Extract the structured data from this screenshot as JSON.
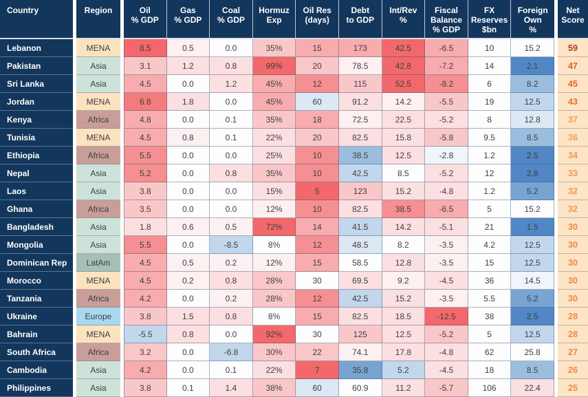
{
  "palette": {
    "R5": "#f3686a",
    "R45": "#f47b7d",
    "R4": "#f58f91",
    "R3": "#f8acae",
    "R2": "#fac7c9",
    "R1": "#fcdfe0",
    "R0": "#fdf0f1",
    "W": "#fdfdfe",
    "B0": "#eff5fb",
    "B1": "#dce8f4",
    "B2": "#c2d7ec",
    "B3": "#9cbede",
    "B4": "#78a4d2",
    "B5": "#5187c5"
  },
  "region_colors": {
    "MENA": "#fbe3c0",
    "Asia": "#cde3da",
    "Africa": "#c99e98",
    "LatAm": "#a5c1b5",
    "Europe": "#a9d8f0"
  },
  "colors": {
    "header_bg": "#13365c",
    "header_text": "#ffffff",
    "country_bg": "#13365c",
    "net_bg": "#fce4c6",
    "cell_text": "#3e4044"
  },
  "chart_data": {
    "type": "heatmap",
    "columns": [
      "Country",
      "Region",
      "Oil\n% GDP",
      "Gas\n% GDP",
      "Coal\n% GDP",
      "Hormuz\nExp",
      "Oil Res\n(days)",
      "Debt\nto GDP",
      "Int/Rev\n%",
      "Fiscal\nBalance\n% GDP",
      "FX\nReserves\n$bn",
      "Foreign\nOwn\n%",
      "Net\nScore"
    ],
    "rows": [
      {
        "country": "Lebanon",
        "region": "MENA",
        "cells": [
          [
            "8.5",
            "R5"
          ],
          [
            "0.5",
            "R0"
          ],
          [
            "0.0",
            "W"
          ],
          [
            "35%",
            "R2"
          ],
          [
            "15",
            "R3"
          ],
          [
            "173",
            "R3"
          ],
          [
            "42.5",
            "R5"
          ],
          [
            "-6.5",
            "R3"
          ],
          [
            "10",
            "W"
          ],
          [
            "15.2",
            "W"
          ]
        ],
        "net": "59",
        "net_color": "#b93b1e"
      },
      {
        "country": "Pakistan",
        "region": "Asia",
        "cells": [
          [
            "3.1",
            "R2"
          ],
          [
            "1.2",
            "R1"
          ],
          [
            "0.8",
            "R1"
          ],
          [
            "99%",
            "R5"
          ],
          [
            "20",
            "R2"
          ],
          [
            "78.5",
            "R0"
          ],
          [
            "42.8",
            "R5"
          ],
          [
            "-7.2",
            "R3"
          ],
          [
            "14",
            "W"
          ],
          [
            "2.1",
            "B5"
          ]
        ],
        "net": "47",
        "net_color": "#e35d19"
      },
      {
        "country": "Sri Lanka",
        "region": "Asia",
        "cells": [
          [
            "4.5",
            "R3"
          ],
          [
            "0.0",
            "W"
          ],
          [
            "1.2",
            "R1"
          ],
          [
            "45%",
            "R3"
          ],
          [
            "12",
            "R4"
          ],
          [
            "115",
            "R2"
          ],
          [
            "52.5",
            "R5"
          ],
          [
            "-8.2",
            "R4"
          ],
          [
            "6",
            "W"
          ],
          [
            "8.2",
            "B3"
          ]
        ],
        "net": "45",
        "net_color": "#e8671f"
      },
      {
        "country": "Jordan",
        "region": "MENA",
        "cells": [
          [
            "6.8",
            "R45"
          ],
          [
            "1.8",
            "R1"
          ],
          [
            "0.0",
            "W"
          ],
          [
            "45%",
            "R3"
          ],
          [
            "60",
            "B1"
          ],
          [
            "91.2",
            "R1"
          ],
          [
            "14.2",
            "R0"
          ],
          [
            "-5.5",
            "R2"
          ],
          [
            "19",
            "W"
          ],
          [
            "12.5",
            "B2"
          ]
        ],
        "net": "43",
        "net_color": "#ea6f26"
      },
      {
        "country": "Kenya",
        "region": "Africa",
        "cells": [
          [
            "4.8",
            "R3"
          ],
          [
            "0.0",
            "W"
          ],
          [
            "0.1",
            "W"
          ],
          [
            "35%",
            "R2"
          ],
          [
            "18",
            "R3"
          ],
          [
            "72.5",
            "R0"
          ],
          [
            "22.5",
            "R1"
          ],
          [
            "-5.2",
            "R1"
          ],
          [
            "8",
            "W"
          ],
          [
            "12.8",
            "B1"
          ]
        ],
        "net": "37",
        "net_color": "#f79c55"
      },
      {
        "country": "Tunisia",
        "region": "MENA",
        "cells": [
          [
            "4.5",
            "R3"
          ],
          [
            "0.8",
            "R0"
          ],
          [
            "0.1",
            "W"
          ],
          [
            "22%",
            "R1"
          ],
          [
            "20",
            "R2"
          ],
          [
            "82.5",
            "R1"
          ],
          [
            "15.8",
            "R1"
          ],
          [
            "-5.8",
            "R2"
          ],
          [
            "9.5",
            "W"
          ],
          [
            "8.5",
            "B3"
          ]
        ],
        "net": "36",
        "net_color": "#f79c55"
      },
      {
        "country": "Ethiopia",
        "region": "Africa",
        "cells": [
          [
            "5.5",
            "R4"
          ],
          [
            "0.0",
            "W"
          ],
          [
            "0.0",
            "W"
          ],
          [
            "25%",
            "R1"
          ],
          [
            "10",
            "R4"
          ],
          [
            "38.5",
            "B3"
          ],
          [
            "12.5",
            "R1"
          ],
          [
            "-2.8",
            "B0"
          ],
          [
            "1.2",
            "W"
          ],
          [
            "2.5",
            "B5"
          ]
        ],
        "net": "34",
        "net_color": "#f69850"
      },
      {
        "country": "Nepal",
        "region": "Asia",
        "cells": [
          [
            "5.2",
            "R4"
          ],
          [
            "0.0",
            "W"
          ],
          [
            "0.8",
            "R1"
          ],
          [
            "35%",
            "R2"
          ],
          [
            "10",
            "R4"
          ],
          [
            "42.5",
            "B2"
          ],
          [
            "8.5",
            "W"
          ],
          [
            "-5.2",
            "R1"
          ],
          [
            "12",
            "W"
          ],
          [
            "2.8",
            "B5"
          ]
        ],
        "net": "33",
        "net_color": "#f69850"
      },
      {
        "country": "Laos",
        "region": "Asia",
        "cells": [
          [
            "3.8",
            "R2"
          ],
          [
            "0.0",
            "W"
          ],
          [
            "0.0",
            "W"
          ],
          [
            "15%",
            "R1"
          ],
          [
            "5",
            "R5"
          ],
          [
            "123",
            "R2"
          ],
          [
            "15.2",
            "R1"
          ],
          [
            "-4.8",
            "R1"
          ],
          [
            "1.2",
            "W"
          ],
          [
            "5.2",
            "B4"
          ]
        ],
        "net": "32",
        "net_color": "#f69850"
      },
      {
        "country": "Ghana",
        "region": "Africa",
        "cells": [
          [
            "3.5",
            "R2"
          ],
          [
            "0.0",
            "W"
          ],
          [
            "0.0",
            "W"
          ],
          [
            "12%",
            "R0"
          ],
          [
            "10",
            "R4"
          ],
          [
            "82.5",
            "R1"
          ],
          [
            "38.5",
            "R4"
          ],
          [
            "-6.5",
            "R3"
          ],
          [
            "5",
            "W"
          ],
          [
            "15.2",
            "W"
          ]
        ],
        "net": "32",
        "net_color": "#f69850"
      },
      {
        "country": "Bangladesh",
        "region": "Asia",
        "cells": [
          [
            "1.8",
            "R1"
          ],
          [
            "0.6",
            "R0"
          ],
          [
            "0.5",
            "R0"
          ],
          [
            "72%",
            "R5"
          ],
          [
            "14",
            "R3"
          ],
          [
            "41.5",
            "B2"
          ],
          [
            "14.2",
            "R1"
          ],
          [
            "-5.1",
            "R1"
          ],
          [
            "21",
            "W"
          ],
          [
            "1.5",
            "B5"
          ]
        ],
        "net": "30",
        "net_color": "#f08a3c"
      },
      {
        "country": "Mongolia",
        "region": "Asia",
        "cells": [
          [
            "5.5",
            "R4"
          ],
          [
            "0.0",
            "W"
          ],
          [
            "-8.5",
            "B2"
          ],
          [
            "8%",
            "W"
          ],
          [
            "12",
            "R4"
          ],
          [
            "48.5",
            "B1"
          ],
          [
            "8.2",
            "W"
          ],
          [
            "-3.5",
            "R0"
          ],
          [
            "4.2",
            "W"
          ],
          [
            "12.5",
            "B2"
          ]
        ],
        "net": "30",
        "net_color": "#f08a3c"
      },
      {
        "country": "Dominican Rep",
        "region": "LatAm",
        "cells": [
          [
            "4.5",
            "R3"
          ],
          [
            "0.5",
            "R0"
          ],
          [
            "0.2",
            "R0"
          ],
          [
            "12%",
            "R0"
          ],
          [
            "15",
            "R3"
          ],
          [
            "58.5",
            "W"
          ],
          [
            "12.8",
            "R1"
          ],
          [
            "-3.5",
            "R0"
          ],
          [
            "15",
            "W"
          ],
          [
            "12.5",
            "B2"
          ]
        ],
        "net": "30",
        "net_color": "#f08a3c"
      },
      {
        "country": "Morocco",
        "region": "MENA",
        "cells": [
          [
            "4.5",
            "R3"
          ],
          [
            "0.2",
            "R0"
          ],
          [
            "0.8",
            "R1"
          ],
          [
            "28%",
            "R2"
          ],
          [
            "30",
            "W"
          ],
          [
            "69.5",
            "R1"
          ],
          [
            "9.2",
            "R0"
          ],
          [
            "-4.5",
            "R1"
          ],
          [
            "36",
            "W"
          ],
          [
            "14.5",
            "B0"
          ]
        ],
        "net": "30",
        "net_color": "#f08a3c"
      },
      {
        "country": "Tanzania",
        "region": "Africa",
        "cells": [
          [
            "4.2",
            "R3"
          ],
          [
            "0.0",
            "W"
          ],
          [
            "0.2",
            "R0"
          ],
          [
            "28%",
            "R2"
          ],
          [
            "12",
            "R4"
          ],
          [
            "42.5",
            "B2"
          ],
          [
            "15.2",
            "R1"
          ],
          [
            "-3.5",
            "R0"
          ],
          [
            "5.5",
            "W"
          ],
          [
            "5.2",
            "B4"
          ]
        ],
        "net": "30",
        "net_color": "#f08a3c"
      },
      {
        "country": "Ukraine",
        "region": "Europe",
        "cells": [
          [
            "3.8",
            "R2"
          ],
          [
            "1.5",
            "R1"
          ],
          [
            "0.8",
            "R1"
          ],
          [
            "8%",
            "W"
          ],
          [
            "15",
            "R3"
          ],
          [
            "82.5",
            "R1"
          ],
          [
            "18.5",
            "R1"
          ],
          [
            "-12.5",
            "R5"
          ],
          [
            "38",
            "W"
          ],
          [
            "2.5",
            "B5"
          ]
        ],
        "net": "28",
        "net_color": "#f08a3c"
      },
      {
        "country": "Bahrain",
        "region": "MENA",
        "cells": [
          [
            "-5.5",
            "B2"
          ],
          [
            "0.8",
            "R1"
          ],
          [
            "0.0",
            "W"
          ],
          [
            "92%",
            "R5"
          ],
          [
            "30",
            "W"
          ],
          [
            "125",
            "R2"
          ],
          [
            "12.5",
            "R1"
          ],
          [
            "-5.2",
            "R2"
          ],
          [
            "5",
            "W"
          ],
          [
            "12.5",
            "B2"
          ]
        ],
        "net": "28",
        "net_color": "#f08a3c"
      },
      {
        "country": "South Africa",
        "region": "Africa",
        "cells": [
          [
            "3.2",
            "R2"
          ],
          [
            "0.0",
            "W"
          ],
          [
            "-6.8",
            "B2"
          ],
          [
            "30%",
            "R2"
          ],
          [
            "22",
            "R2"
          ],
          [
            "74.1",
            "R0"
          ],
          [
            "17.8",
            "R1"
          ],
          [
            "-4.8",
            "R1"
          ],
          [
            "62",
            "W"
          ],
          [
            "25.8",
            "W"
          ]
        ],
        "net": "27",
        "net_color": "#f08a3c"
      },
      {
        "country": "Cambodia",
        "region": "Asia",
        "cells": [
          [
            "4.2",
            "R3"
          ],
          [
            "0.0",
            "W"
          ],
          [
            "0.1",
            "W"
          ],
          [
            "22%",
            "R1"
          ],
          [
            "7",
            "R5"
          ],
          [
            "35.8",
            "B4"
          ],
          [
            "5.2",
            "B2"
          ],
          [
            "-4.5",
            "R1"
          ],
          [
            "18",
            "W"
          ],
          [
            "8.5",
            "B3"
          ]
        ],
        "net": "26",
        "net_color": "#f08a3c"
      },
      {
        "country": "Philippines",
        "region": "Asia",
        "cells": [
          [
            "3.8",
            "R2"
          ],
          [
            "0.1",
            "W"
          ],
          [
            "1.4",
            "R1"
          ],
          [
            "38%",
            "R2"
          ],
          [
            "60",
            "B1"
          ],
          [
            "60.9",
            "W"
          ],
          [
            "11.2",
            "R1"
          ],
          [
            "-5.7",
            "R2"
          ],
          [
            "106",
            "W"
          ],
          [
            "22.4",
            "R1"
          ]
        ],
        "net": "25",
        "net_color": "#f08a3c"
      }
    ]
  }
}
